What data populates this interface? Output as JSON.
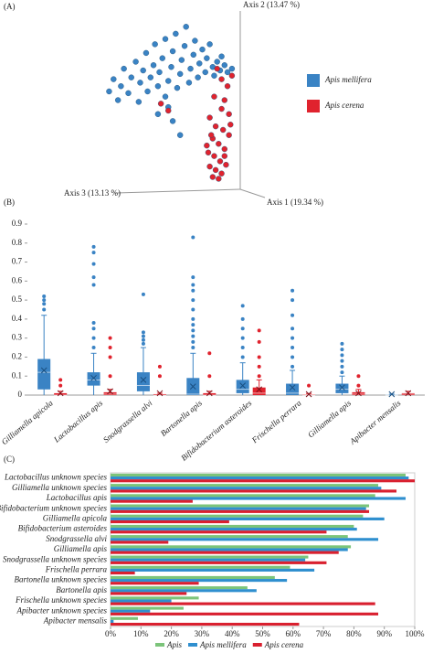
{
  "chart_data": [
    {
      "type": "scatter",
      "label": "(A)",
      "axis_labels": [
        "Axis 2 (13.47 %)",
        "Axis 3 (13.13 %)",
        "Axis 1 (19.34 %)"
      ],
      "xlim": [
        0,
        100
      ],
      "ylim": [
        0,
        100
      ],
      "series": [
        {
          "name": "Apis mellifera",
          "color": "#3a83c4",
          "x": [
            12,
            15,
            18,
            20,
            22,
            25,
            27,
            30,
            32,
            33,
            35,
            37,
            38,
            40,
            42,
            43,
            45,
            46,
            48,
            50,
            50,
            52,
            54,
            55,
            57,
            58,
            60,
            61,
            63,
            64,
            66,
            67,
            69,
            70,
            72,
            73,
            75,
            77,
            78,
            80,
            82,
            83,
            85,
            87,
            88,
            90,
            92,
            95,
            45,
            55,
            60,
            52
          ],
          "y": [
            55,
            62,
            50,
            58,
            68,
            54,
            63,
            72,
            49,
            60,
            67,
            77,
            55,
            63,
            70,
            82,
            58,
            66,
            74,
            85,
            52,
            61,
            69,
            78,
            88,
            57,
            65,
            73,
            81,
            92,
            60,
            68,
            76,
            84,
            63,
            71,
            79,
            66,
            74,
            82,
            69,
            64,
            72,
            67,
            75,
            70,
            66,
            68,
            42,
            38,
            30,
            46
          ]
        },
        {
          "name": "Apis cerena",
          "color": "#e0232e",
          "x": [
            85,
            88,
            95,
            92,
            83,
            90,
            88,
            93,
            80,
            84,
            89,
            93,
            82,
            86,
            90,
            79,
            83,
            87,
            91,
            80,
            84,
            88,
            82,
            86,
            90,
            78,
            94,
            81,
            47,
            52
          ],
          "y": [
            68,
            62,
            64,
            58,
            52,
            50,
            45,
            42,
            40,
            35,
            33,
            30,
            28,
            25,
            22,
            20,
            18,
            15,
            13,
            12,
            10,
            8,
            6,
            5,
            18,
            24,
            36,
            30,
            48,
            44
          ]
        }
      ]
    },
    {
      "type": "box",
      "label": "(B)",
      "categories": [
        "Gilliamella apicola",
        "Lactobacillus apis",
        "Snodgrassella alvi",
        "Bartonella apis",
        "Bifidobacterium asteroides",
        "Frischella perrara",
        "Gilliamella apis",
        "Apibacter mensalis"
      ],
      "ylim": [
        0,
        0.9
      ],
      "yticks": [
        0,
        0.1,
        0.2,
        0.3,
        0.4,
        0.5,
        0.6,
        0.7,
        0.8,
        0.9
      ],
      "series": [
        {
          "color": "#3a83c4",
          "boxes": [
            {
              "min": 0,
              "q1": 0.03,
              "median": 0.12,
              "q3": 0.19,
              "max": 0.42,
              "mean": 0.13,
              "outliers": [
                0.45,
                0.48,
                0.5,
                0.52
              ]
            },
            {
              "min": 0,
              "q1": 0.05,
              "median": 0.08,
              "q3": 0.12,
              "max": 0.22,
              "mean": 0.09,
              "outliers": [
                0.25,
                0.3,
                0.35,
                0.38,
                0.58,
                0.62,
                0.69,
                0.75,
                0.78
              ]
            },
            {
              "min": 0,
              "q1": 0.02,
              "median": 0.05,
              "q3": 0.12,
              "max": 0.25,
              "mean": 0.08,
              "outliers": [
                0.27,
                0.29,
                0.31,
                0.33,
                0.53
              ]
            },
            {
              "min": 0,
              "q1": 0,
              "median": 0.005,
              "q3": 0.09,
              "max": 0.22,
              "mean": 0.045,
              "outliers": [
                0.25,
                0.28,
                0.31,
                0.34,
                0.37,
                0.4,
                0.45,
                0.5,
                0.55,
                0.58,
                0.62,
                0.83
              ]
            },
            {
              "min": 0,
              "q1": 0.01,
              "median": 0.03,
              "q3": 0.08,
              "max": 0.17,
              "mean": 0.05,
              "outliers": [
                0.2,
                0.25,
                0.3,
                0.35,
                0.4,
                0.47
              ]
            },
            {
              "min": 0,
              "q1": 0,
              "median": 0.01,
              "q3": 0.06,
              "max": 0.13,
              "mean": 0.04,
              "outliers": [
                0.15,
                0.2,
                0.25,
                0.3,
                0.35,
                0.42,
                0.5,
                0.55
              ]
            },
            {
              "min": 0,
              "q1": 0.01,
              "median": 0.03,
              "q3": 0.06,
              "max": 0.1,
              "mean": 0.04,
              "outliers": [
                0.12,
                0.15,
                0.18,
                0.21,
                0.24,
                0.27
              ]
            },
            {
              "min": 0,
              "q1": 0,
              "median": 0,
              "q3": 0.002,
              "max": 0.005,
              "mean": 0.005,
              "outliers": []
            }
          ]
        },
        {
          "color": "#e0232e",
          "boxes": [
            {
              "min": 0,
              "q1": 0,
              "median": 0,
              "q3": 0.01,
              "max": 0.02,
              "mean": 0.01,
              "outliers": [
                0.05,
                0.08
              ]
            },
            {
              "min": 0,
              "q1": 0,
              "median": 0.005,
              "q3": 0.015,
              "max": 0.03,
              "mean": 0.02,
              "outliers": [
                0.1,
                0.2,
                0.25,
                0.3
              ]
            },
            {
              "min": 0,
              "q1": 0,
              "median": 0,
              "q3": 0.005,
              "max": 0.01,
              "mean": 0.01,
              "outliers": [
                0.1,
                0.15
              ]
            },
            {
              "min": 0,
              "q1": 0,
              "median": 0,
              "q3": 0.01,
              "max": 0.02,
              "mean": 0.01,
              "outliers": [
                0.1,
                0.22
              ]
            },
            {
              "min": 0,
              "q1": 0,
              "median": 0.01,
              "q3": 0.04,
              "max": 0.08,
              "mean": 0.03,
              "outliers": [
                0.1,
                0.15,
                0.2,
                0.28,
                0.34
              ]
            },
            {
              "min": 0,
              "q1": 0,
              "median": 0,
              "q3": 0.003,
              "max": 0.008,
              "mean": 0.005,
              "outliers": [
                0.05
              ]
            },
            {
              "min": 0,
              "q1": 0,
              "median": 0.005,
              "q3": 0.015,
              "max": 0.03,
              "mean": 0.01,
              "outliers": [
                0.05,
                0.1
              ]
            },
            {
              "min": 0,
              "q1": 0,
              "median": 0.005,
              "q3": 0.01,
              "max": 0.02,
              "mean": 0.01,
              "outliers": []
            }
          ]
        }
      ]
    },
    {
      "type": "bar",
      "orientation": "horizontal",
      "label": "(C)",
      "categories": [
        "Lactobacillus unknown species",
        "Gilliamella unknown species",
        "Lactobacillus apis",
        "Bifidobacterium unknown species",
        "Gilliamella apicola",
        "Bifidobacterium asteroides",
        "Snodgrassella alvi",
        "Gilliamella apis",
        "Snodgrassella unknown species",
        "Frischella perrara",
        "Bartonella unknown species",
        "Bartonella apis",
        "Frischella unknown species",
        "Apibacter unknown species",
        "Apibacter mensalis"
      ],
      "xlim": [
        0,
        100
      ],
      "xticks": [
        {
          "value": 0,
          "label": "0%"
        },
        {
          "value": 10,
          "label": "10%"
        },
        {
          "value": 20,
          "label": "20%"
        },
        {
          "value": 30,
          "label": "30%"
        },
        {
          "value": 40,
          "label": "40%"
        },
        {
          "value": 50,
          "label": "50%"
        },
        {
          "value": 60,
          "label": "60%"
        },
        {
          "value": 70,
          "label": "70%"
        },
        {
          "value": 80,
          "label": "80%"
        },
        {
          "value": 90,
          "label": "90%"
        },
        {
          "value": 100,
          "label": "100%"
        }
      ],
      "series": [
        {
          "name": "Apis",
          "color": "#7cc47a",
          "values": [
            97,
            88,
            87,
            85,
            83,
            80,
            78,
            79,
            65,
            59,
            54,
            45,
            29,
            24,
            9
          ]
        },
        {
          "name": "Apis mellifera",
          "color": "#2f8fcf",
          "values": [
            98,
            89,
            97,
            84,
            90,
            81,
            88,
            78,
            64,
            67,
            58,
            48,
            20,
            13,
            1
          ]
        },
        {
          "name": "Apis cerena",
          "color": "#d9202f",
          "values": [
            100,
            94,
            27,
            85,
            39,
            71,
            19,
            75,
            71,
            8,
            29,
            25,
            87,
            88,
            62
          ]
        }
      ]
    }
  ]
}
